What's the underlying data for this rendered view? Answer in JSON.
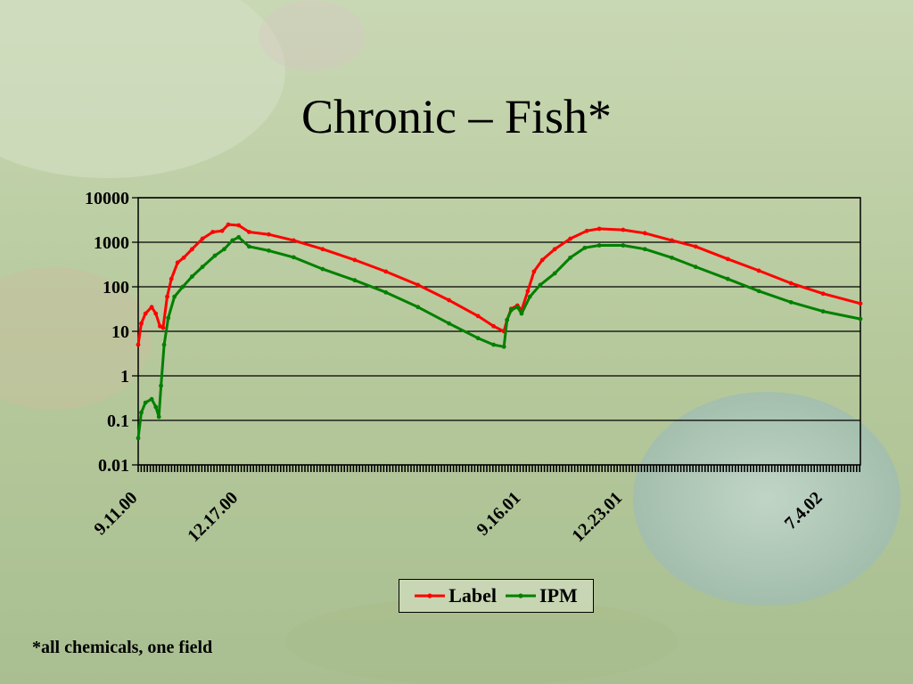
{
  "slide": {
    "title": "Chronic – Fish*",
    "footnote": "*all chemicals, one field"
  },
  "colors": {
    "label": "#ff0000",
    "ipm": "#008000",
    "background": "#b9c9a4"
  },
  "chart_data": {
    "type": "line",
    "title": "Chronic – Fish*",
    "xlabel": "",
    "ylabel": "",
    "yscale": "log",
    "ylim": [
      0.01,
      10000
    ],
    "yticks": [
      "10000",
      "1000",
      "100",
      "10",
      "1",
      "0.1",
      "0.01"
    ],
    "xlim": [
      "2000-09-11",
      "2002-08-09"
    ],
    "xticks": [
      {
        "date": "2000-09-11",
        "label": "9.11.00"
      },
      {
        "date": "2000-12-17",
        "label": "12.17.00"
      },
      {
        "date": "2001-09-16",
        "label": "9.16.01"
      },
      {
        "date": "2001-12-23",
        "label": "12.23.01"
      },
      {
        "date": "2002-07-04",
        "label": "7.4.02"
      }
    ],
    "grid": true,
    "legend_position": "bottom",
    "series": [
      {
        "name": "Label",
        "color": "#ff0000",
        "points": [
          [
            "2000-09-11",
            5
          ],
          [
            "2000-09-14",
            15
          ],
          [
            "2000-09-18",
            25
          ],
          [
            "2000-09-24",
            35
          ],
          [
            "2000-09-28",
            25
          ],
          [
            "2000-10-02",
            13
          ],
          [
            "2000-10-05",
            12
          ],
          [
            "2000-10-09",
            60
          ],
          [
            "2000-10-13",
            150
          ],
          [
            "2000-10-19",
            350
          ],
          [
            "2000-10-25",
            450
          ],
          [
            "2000-11-02",
            700
          ],
          [
            "2000-11-12",
            1200
          ],
          [
            "2000-11-22",
            1700
          ],
          [
            "2000-12-01",
            1800
          ],
          [
            "2000-12-07",
            2500
          ],
          [
            "2000-12-17",
            2400
          ],
          [
            "2000-12-27",
            1700
          ],
          [
            "2001-01-15",
            1500
          ],
          [
            "2001-02-08",
            1100
          ],
          [
            "2001-03-08",
            700
          ],
          [
            "2001-04-08",
            400
          ],
          [
            "2001-05-08",
            220
          ],
          [
            "2001-06-08",
            110
          ],
          [
            "2001-07-08",
            50
          ],
          [
            "2001-08-05",
            22
          ],
          [
            "2001-08-20",
            13
          ],
          [
            "2001-08-30",
            10
          ],
          [
            "2001-09-02",
            18
          ],
          [
            "2001-09-06",
            32
          ],
          [
            "2001-09-12",
            38
          ],
          [
            "2001-09-16",
            30
          ],
          [
            "2001-09-22",
            80
          ],
          [
            "2001-09-28",
            220
          ],
          [
            "2001-10-06",
            400
          ],
          [
            "2001-10-18",
            700
          ],
          [
            "2001-11-02",
            1200
          ],
          [
            "2001-11-18",
            1800
          ],
          [
            "2001-11-30",
            2000
          ],
          [
            "2001-12-23",
            1900
          ],
          [
            "2002-01-13",
            1600
          ],
          [
            "2002-02-08",
            1100
          ],
          [
            "2002-03-03",
            800
          ],
          [
            "2002-04-03",
            420
          ],
          [
            "2002-05-03",
            230
          ],
          [
            "2002-06-03",
            120
          ],
          [
            "2002-07-04",
            70
          ],
          [
            "2002-08-09",
            42
          ]
        ]
      },
      {
        "name": "IPM",
        "color": "#008000",
        "points": [
          [
            "2000-09-11",
            0.04
          ],
          [
            "2000-09-14",
            0.15
          ],
          [
            "2000-09-18",
            0.25
          ],
          [
            "2000-09-24",
            0.3
          ],
          [
            "2000-09-28",
            0.2
          ],
          [
            "2000-10-01",
            0.12
          ],
          [
            "2000-10-03",
            0.6
          ],
          [
            "2000-10-06",
            5
          ],
          [
            "2000-10-10",
            20
          ],
          [
            "2000-10-16",
            60
          ],
          [
            "2000-10-24",
            100
          ],
          [
            "2000-11-02",
            170
          ],
          [
            "2000-11-12",
            280
          ],
          [
            "2000-11-24",
            500
          ],
          [
            "2000-12-03",
            700
          ],
          [
            "2000-12-11",
            1100
          ],
          [
            "2000-12-17",
            1300
          ],
          [
            "2000-12-27",
            800
          ],
          [
            "2001-01-15",
            650
          ],
          [
            "2001-02-08",
            460
          ],
          [
            "2001-03-08",
            250
          ],
          [
            "2001-04-08",
            140
          ],
          [
            "2001-05-08",
            75
          ],
          [
            "2001-06-08",
            35
          ],
          [
            "2001-07-08",
            15
          ],
          [
            "2001-08-05",
            7
          ],
          [
            "2001-08-20",
            5
          ],
          [
            "2001-08-30",
            4.5
          ],
          [
            "2001-09-02",
            18
          ],
          [
            "2001-09-06",
            30
          ],
          [
            "2001-09-12",
            35
          ],
          [
            "2001-09-16",
            25
          ],
          [
            "2001-09-24",
            60
          ],
          [
            "2001-10-04",
            110
          ],
          [
            "2001-10-18",
            200
          ],
          [
            "2001-11-02",
            450
          ],
          [
            "2001-11-16",
            750
          ],
          [
            "2001-11-30",
            850
          ],
          [
            "2001-12-23",
            850
          ],
          [
            "2002-01-13",
            700
          ],
          [
            "2002-02-08",
            450
          ],
          [
            "2002-03-03",
            280
          ],
          [
            "2002-04-03",
            150
          ],
          [
            "2002-05-03",
            80
          ],
          [
            "2002-06-03",
            45
          ],
          [
            "2002-07-04",
            28
          ],
          [
            "2002-08-09",
            19
          ]
        ]
      }
    ]
  }
}
